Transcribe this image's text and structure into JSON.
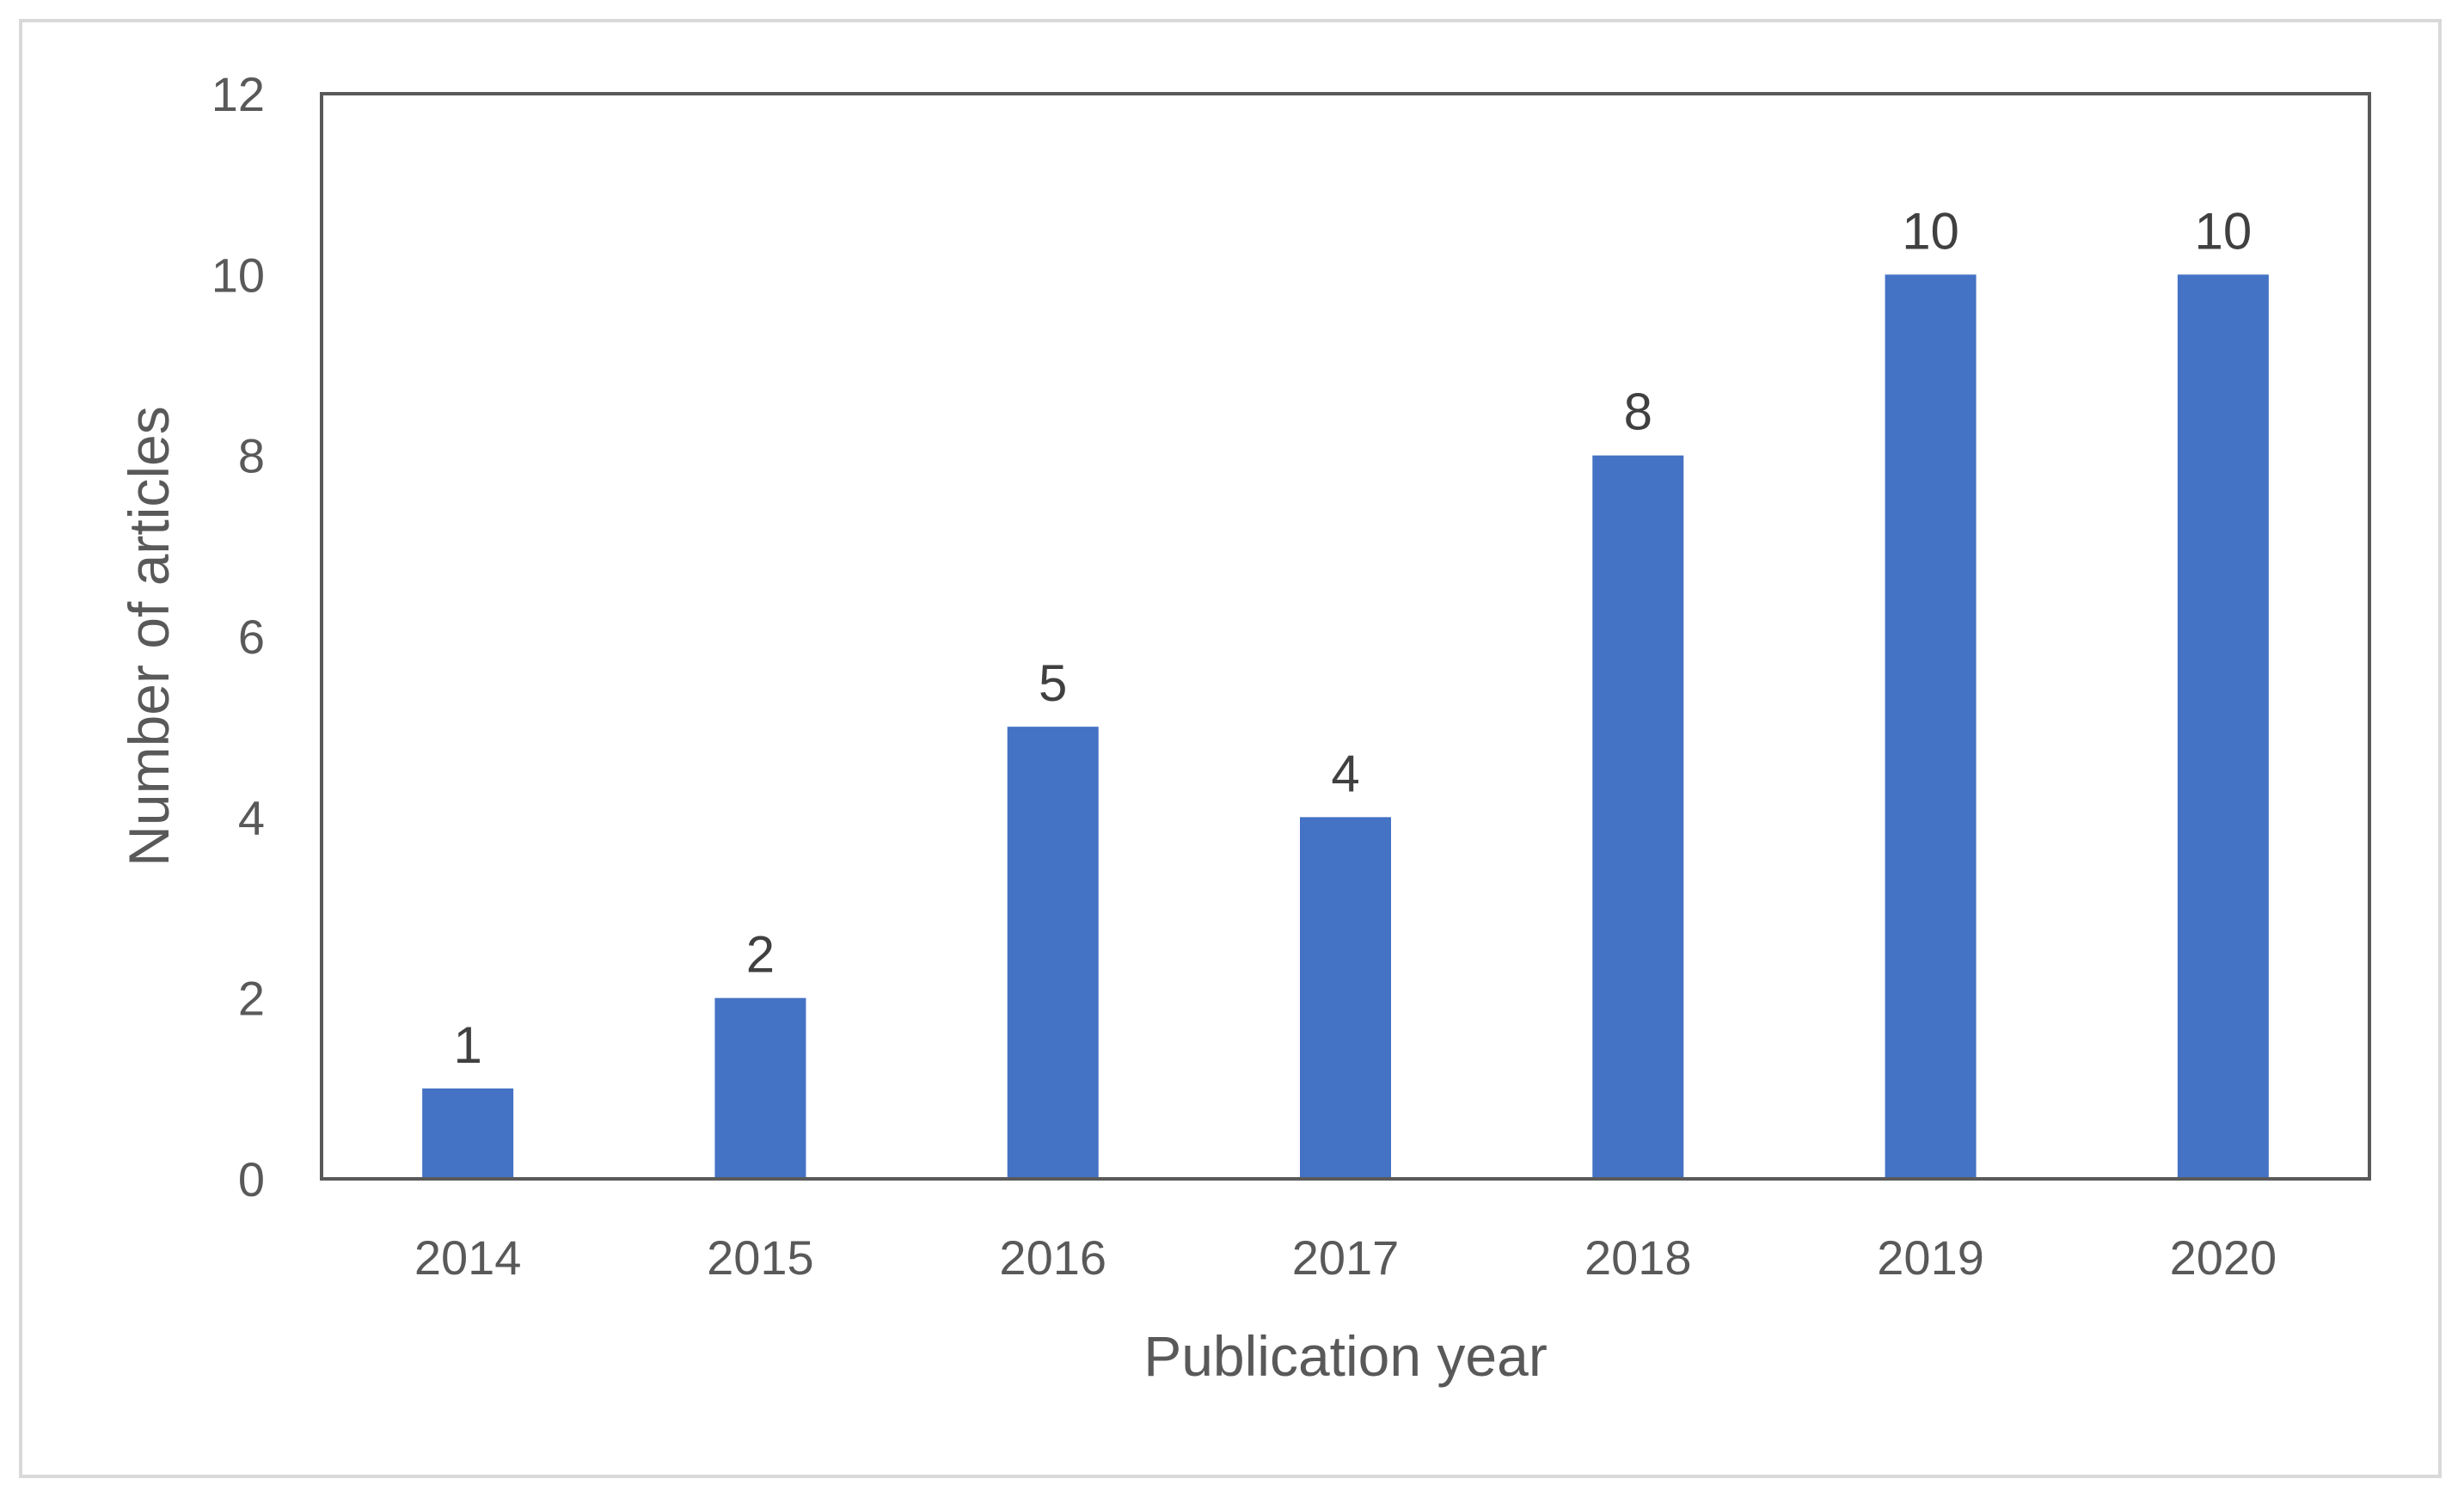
{
  "chart_data": {
    "type": "bar",
    "title": "",
    "xlabel": "Publication year",
    "ylabel": "Number of articles",
    "categories": [
      "2014",
      "2015",
      "2016",
      "2017",
      "2018",
      "2019",
      "2020"
    ],
    "values": [
      1,
      2,
      5,
      4,
      8,
      10,
      10
    ],
    "data_labels": [
      "1",
      "2",
      "5",
      "4",
      "8",
      "10",
      "10"
    ],
    "ylim": [
      0,
      12
    ],
    "yticks": [
      "0",
      "2",
      "4",
      "6",
      "8",
      "10",
      "12"
    ],
    "bar_color": "#4472c4",
    "axis_color": "#595959",
    "grid": false,
    "legend": "none"
  }
}
